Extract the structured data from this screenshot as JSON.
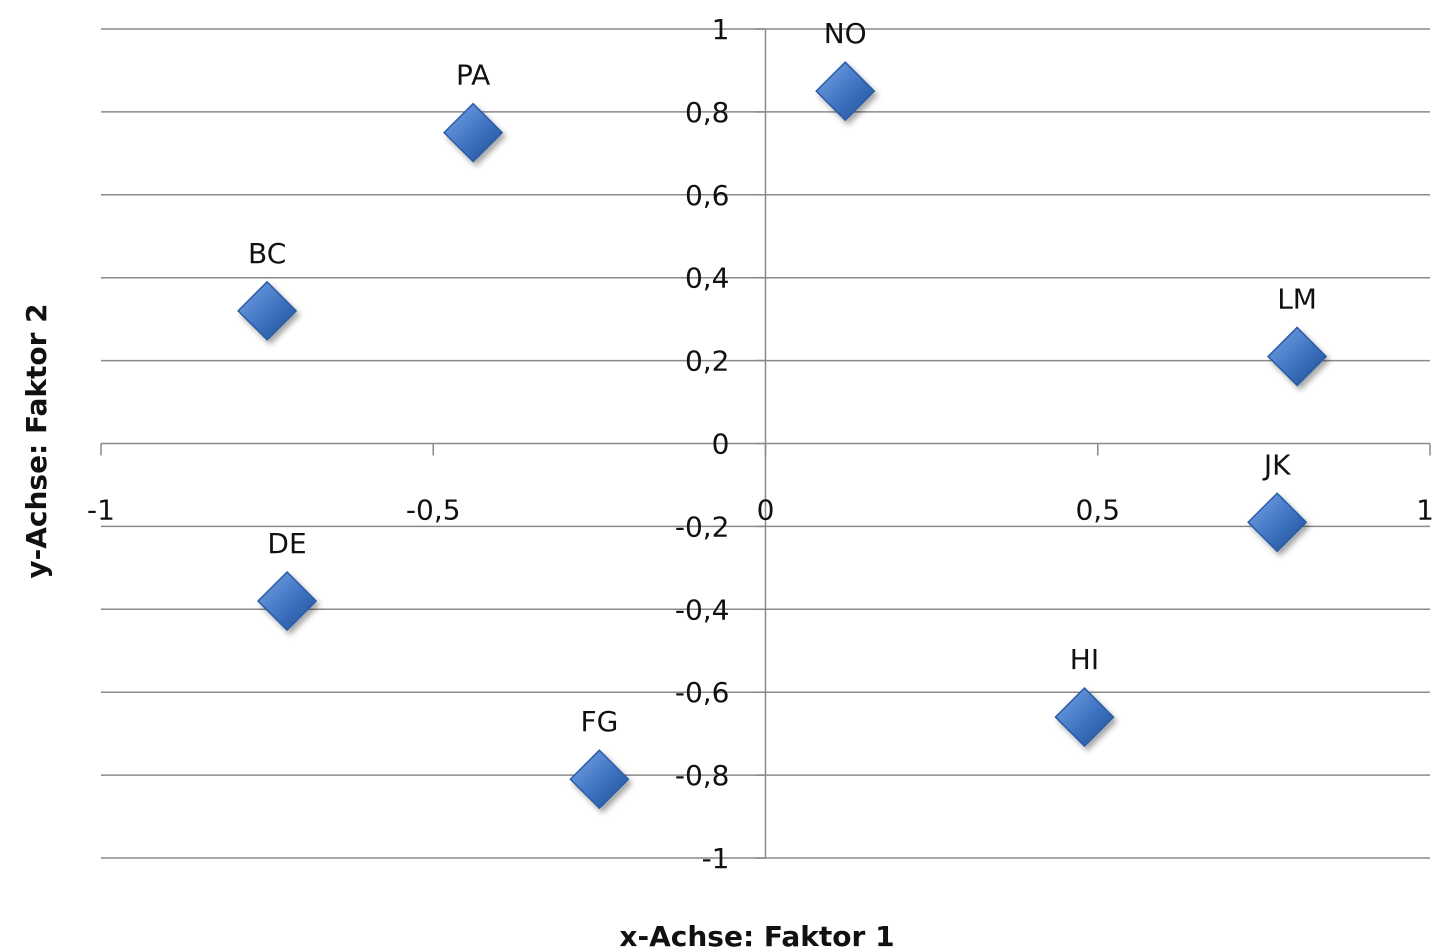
{
  "chart_data": {
    "type": "scatter",
    "title": "",
    "xlabel": "x-Achse: Faktor 1",
    "ylabel": "y-Achse: Faktor 2",
    "xlim": [
      -1,
      1
    ],
    "ylim": [
      -1,
      1
    ],
    "x_ticks": [
      {
        "value": -1,
        "label": "-1"
      },
      {
        "value": -0.5,
        "label": "-0,5"
      },
      {
        "value": 0,
        "label": "0"
      },
      {
        "value": 0.5,
        "label": "0,5"
      },
      {
        "value": 1,
        "label": "1"
      }
    ],
    "y_ticks": [
      {
        "value": 1,
        "label": "1"
      },
      {
        "value": 0.8,
        "label": "0,8"
      },
      {
        "value": 0.6,
        "label": "0,6"
      },
      {
        "value": 0.4,
        "label": "0,4"
      },
      {
        "value": 0.2,
        "label": "0,2"
      },
      {
        "value": 0,
        "label": "0"
      },
      {
        "value": -0.2,
        "label": "-0,2"
      },
      {
        "value": -0.4,
        "label": "-0,4"
      },
      {
        "value": -0.6,
        "label": "-0,6"
      },
      {
        "value": -0.8,
        "label": "-0,8"
      },
      {
        "value": -1,
        "label": "-1"
      }
    ],
    "grid": "horizontal",
    "legend": "none",
    "marker": "diamond",
    "marker_color": "#3d72c0",
    "points": [
      {
        "label": "NO",
        "x": 0.12,
        "y": 0.85
      },
      {
        "label": "PA",
        "x": -0.44,
        "y": 0.75
      },
      {
        "label": "BC",
        "x": -0.75,
        "y": 0.32
      },
      {
        "label": "LM",
        "x": 0.8,
        "y": 0.21
      },
      {
        "label": "JK",
        "x": 0.77,
        "y": -0.19
      },
      {
        "label": "DE",
        "x": -0.72,
        "y": -0.38
      },
      {
        "label": "HI",
        "x": 0.48,
        "y": -0.66
      },
      {
        "label": "FG",
        "x": -0.25,
        "y": -0.81
      }
    ]
  }
}
